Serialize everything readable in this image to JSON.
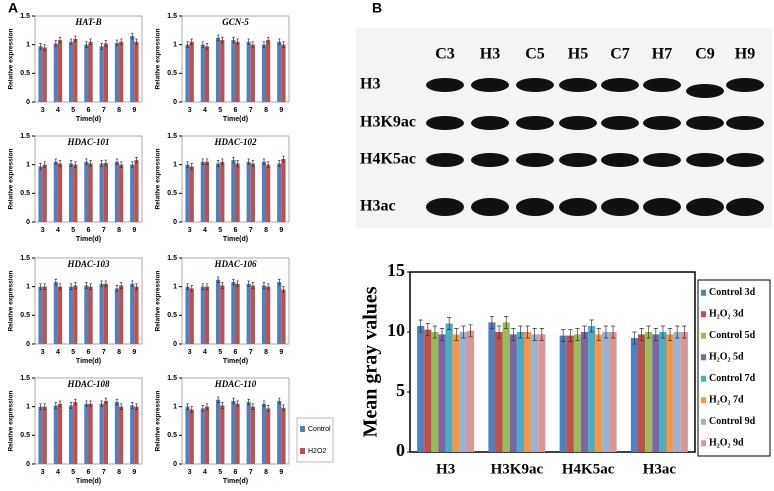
{
  "panels": [
    "A",
    "B"
  ],
  "blot": {
    "lanes": [
      "C3",
      "H3",
      "C5",
      "H5",
      "C7",
      "H7",
      "C9",
      "H9"
    ],
    "rows": [
      "H3",
      "H3K9ac",
      "H4K5ac",
      "H3ac"
    ]
  },
  "chart_data": [
    {
      "type": "bar",
      "title": "HAT-B",
      "ylabel": "Relative expression",
      "xlabel": "Time(d)",
      "categories": [
        "3",
        "4",
        "5",
        "6",
        "7",
        "8",
        "9"
      ],
      "ylim": [
        0,
        1.5
      ],
      "yticks": [
        0,
        0.5,
        1,
        1.5
      ],
      "series": [
        {
          "name": "Control",
          "color": "#4f81bd",
          "values": [
            0.97,
            1.02,
            1.05,
            1.0,
            0.97,
            1.03,
            1.15
          ],
          "errors": [
            0.05,
            0.05,
            0.05,
            0.05,
            0.05,
            0.05,
            0.05
          ]
        },
        {
          "name": "H2O2",
          "color": "#c0504d",
          "values": [
            0.95,
            1.08,
            1.1,
            1.05,
            1.02,
            1.05,
            1.05
          ],
          "errors": [
            0.05,
            0.05,
            0.05,
            0.05,
            0.05,
            0.05,
            0.05
          ]
        }
      ]
    },
    {
      "type": "bar",
      "title": "GCN-5",
      "ylabel": "Relative expression",
      "xlabel": "Time(d)",
      "categories": [
        "3",
        "4",
        "5",
        "6",
        "7",
        "8",
        "9"
      ],
      "ylim": [
        0,
        1.5
      ],
      "yticks": [
        0,
        0.5,
        1,
        1.5
      ],
      "series": [
        {
          "name": "Control",
          "color": "#4f81bd",
          "values": [
            1.0,
            1.0,
            1.12,
            1.08,
            1.05,
            1.0,
            1.05
          ],
          "errors": [
            0.05,
            0.05,
            0.05,
            0.05,
            0.05,
            0.05,
            0.05
          ]
        },
        {
          "name": "H2O2",
          "color": "#c0504d",
          "values": [
            1.05,
            0.97,
            1.08,
            1.05,
            1.0,
            1.08,
            1.0
          ],
          "errors": [
            0.05,
            0.05,
            0.05,
            0.05,
            0.05,
            0.05,
            0.05
          ]
        }
      ]
    },
    {
      "type": "bar",
      "title": "HDAC-101",
      "ylabel": "Relative expression",
      "xlabel": "Time(d)",
      "categories": [
        "3",
        "4",
        "5",
        "6",
        "7",
        "8",
        "9"
      ],
      "ylim": [
        0,
        1.5
      ],
      "yticks": [
        0,
        0.5,
        1,
        1.5
      ],
      "series": [
        {
          "name": "Control",
          "color": "#4f81bd",
          "values": [
            0.97,
            1.05,
            1.02,
            1.05,
            1.02,
            1.05,
            1.0
          ],
          "errors": [
            0.05,
            0.05,
            0.05,
            0.05,
            0.05,
            0.05,
            0.05
          ]
        },
        {
          "name": "H2O2",
          "color": "#c0504d",
          "values": [
            1.0,
            1.02,
            1.0,
            1.02,
            1.03,
            1.0,
            1.08
          ],
          "errors": [
            0.05,
            0.05,
            0.05,
            0.05,
            0.05,
            0.05,
            0.05
          ]
        }
      ]
    },
    {
      "type": "bar",
      "title": "HDAC-102",
      "ylabel": "Relative expression",
      "xlabel": "Time(d)",
      "categories": [
        "3",
        "4",
        "5",
        "6",
        "7",
        "8",
        "9"
      ],
      "ylim": [
        0,
        1.5
      ],
      "yticks": [
        0,
        0.5,
        1,
        1.5
      ],
      "series": [
        {
          "name": "Control",
          "color": "#4f81bd",
          "values": [
            1.0,
            1.05,
            1.02,
            1.08,
            1.05,
            1.05,
            1.02
          ],
          "errors": [
            0.05,
            0.05,
            0.05,
            0.05,
            0.05,
            0.05,
            0.05
          ]
        },
        {
          "name": "H2O2",
          "color": "#c0504d",
          "values": [
            0.97,
            1.05,
            1.05,
            1.02,
            1.02,
            1.0,
            1.1
          ],
          "errors": [
            0.05,
            0.05,
            0.05,
            0.05,
            0.05,
            0.05,
            0.05
          ]
        }
      ]
    },
    {
      "type": "bar",
      "title": "HDAC-103",
      "ylabel": "Relative expression",
      "xlabel": "Time(d)",
      "categories": [
        "3",
        "4",
        "5",
        "6",
        "7",
        "8",
        "9"
      ],
      "ylim": [
        0,
        1.5
      ],
      "yticks": [
        0,
        0.5,
        1,
        1.5
      ],
      "series": [
        {
          "name": "Control",
          "color": "#4f81bd",
          "values": [
            1.0,
            1.08,
            1.0,
            1.02,
            1.05,
            0.97,
            1.05
          ],
          "errors": [
            0.05,
            0.05,
            0.05,
            0.05,
            0.05,
            0.05,
            0.05
          ]
        },
        {
          "name": "H2O2",
          "color": "#c0504d",
          "values": [
            1.0,
            1.0,
            1.02,
            1.0,
            1.05,
            1.02,
            1.0
          ],
          "errors": [
            0.05,
            0.05,
            0.05,
            0.05,
            0.05,
            0.05,
            0.05
          ]
        }
      ]
    },
    {
      "type": "bar",
      "title": "HDAC-106",
      "ylabel": "Relative expression",
      "xlabel": "Time(d)",
      "categories": [
        "3",
        "4",
        "5",
        "6",
        "7",
        "8",
        "9"
      ],
      "ylim": [
        0,
        1.5
      ],
      "yticks": [
        0,
        0.5,
        1,
        1.5
      ],
      "series": [
        {
          "name": "Control",
          "color": "#4f81bd",
          "values": [
            1.0,
            1.0,
            1.12,
            1.08,
            1.05,
            1.02,
            1.08
          ],
          "errors": [
            0.05,
            0.05,
            0.05,
            0.05,
            0.05,
            0.05,
            0.05
          ]
        },
        {
          "name": "H2O2",
          "color": "#c0504d",
          "values": [
            0.97,
            1.0,
            1.02,
            1.05,
            1.02,
            1.0,
            0.95
          ],
          "errors": [
            0.05,
            0.05,
            0.05,
            0.05,
            0.05,
            0.05,
            0.05
          ]
        }
      ]
    },
    {
      "type": "bar",
      "title": "HDAC-108",
      "ylabel": "Relative expression",
      "xlabel": "Time(d)",
      "categories": [
        "3",
        "4",
        "5",
        "6",
        "7",
        "8",
        "9"
      ],
      "ylim": [
        0,
        1.5
      ],
      "yticks": [
        0,
        0.5,
        1,
        1.5
      ],
      "series": [
        {
          "name": "Control",
          "color": "#4f81bd",
          "values": [
            1.0,
            1.02,
            1.02,
            1.05,
            1.05,
            1.08,
            1.02
          ],
          "errors": [
            0.05,
            0.05,
            0.05,
            0.05,
            0.05,
            0.05,
            0.05
          ]
        },
        {
          "name": "H2O2",
          "color": "#c0504d",
          "values": [
            1.0,
            1.05,
            1.08,
            1.05,
            1.1,
            1.0,
            1.0
          ],
          "errors": [
            0.05,
            0.05,
            0.05,
            0.05,
            0.05,
            0.05,
            0.05
          ]
        }
      ]
    },
    {
      "type": "bar",
      "title": "HDAC-110",
      "ylabel": "Relative expression",
      "xlabel": "Time(d)",
      "categories": [
        "3",
        "4",
        "5",
        "6",
        "7",
        "8",
        "9"
      ],
      "ylim": [
        0,
        1.5
      ],
      "yticks": [
        0,
        0.5,
        1,
        1.5
      ],
      "legend": "right",
      "series": [
        {
          "name": "Control",
          "color": "#4f81bd",
          "values": [
            1.0,
            0.97,
            1.12,
            1.1,
            1.08,
            1.05,
            1.1
          ],
          "errors": [
            0.05,
            0.05,
            0.05,
            0.05,
            0.05,
            0.05,
            0.05
          ]
        },
        {
          "name": "H2O2",
          "color": "#c0504d",
          "values": [
            0.95,
            1.0,
            1.02,
            1.05,
            1.0,
            0.97,
            0.98
          ],
          "errors": [
            0.05,
            0.05,
            0.05,
            0.05,
            0.05,
            0.05,
            0.05
          ]
        }
      ]
    },
    {
      "type": "bar",
      "ylabel": "Mean gray values",
      "categories": [
        "H3",
        "H3K9ac",
        "H4K5ac",
        "H3ac"
      ],
      "ylim": [
        0,
        15
      ],
      "yticks": [
        0,
        5,
        10,
        15
      ],
      "legend": "right",
      "series": [
        {
          "name": "Control 3d",
          "color": "#4f81bd",
          "values": [
            10.5,
            10.8,
            9.7,
            9.5
          ],
          "errors": [
            0.5,
            0.5,
            0.5,
            0.5
          ]
        },
        {
          "name": "H₂O₂ 3d",
          "color": "#c0504d",
          "values": [
            10.2,
            10.0,
            9.7,
            9.8
          ],
          "errors": [
            0.5,
            0.5,
            0.5,
            0.5
          ]
        },
        {
          "name": "Control 5d",
          "color": "#9bbb59",
          "values": [
            10.0,
            10.8,
            9.8,
            10.0
          ],
          "errors": [
            0.5,
            0.5,
            0.5,
            0.5
          ]
        },
        {
          "name": "H₂O₂ 5d",
          "color": "#8064a2",
          "values": [
            9.8,
            9.8,
            10.0,
            9.8
          ],
          "errors": [
            0.5,
            0.5,
            0.5,
            0.5
          ]
        },
        {
          "name": "Control 7d",
          "color": "#4bacc6",
          "values": [
            10.7,
            10.0,
            10.5,
            10.0
          ],
          "errors": [
            0.5,
            0.5,
            0.5,
            0.5
          ]
        },
        {
          "name": "H₂O₂ 7d",
          "color": "#f79646",
          "values": [
            9.8,
            10.0,
            9.8,
            9.8
          ],
          "errors": [
            0.5,
            0.5,
            0.5,
            0.5
          ]
        },
        {
          "name": "Control 9d",
          "color": "#95b3d7",
          "values": [
            10.0,
            9.8,
            10.0,
            10.0
          ],
          "errors": [
            0.5,
            0.5,
            0.5,
            0.5
          ]
        },
        {
          "name": "H₂O₂ 9d",
          "color": "#d99694",
          "values": [
            10.1,
            9.8,
            10.0,
            10.0
          ],
          "errors": [
            0.5,
            0.5,
            0.5,
            0.5
          ]
        }
      ]
    }
  ]
}
